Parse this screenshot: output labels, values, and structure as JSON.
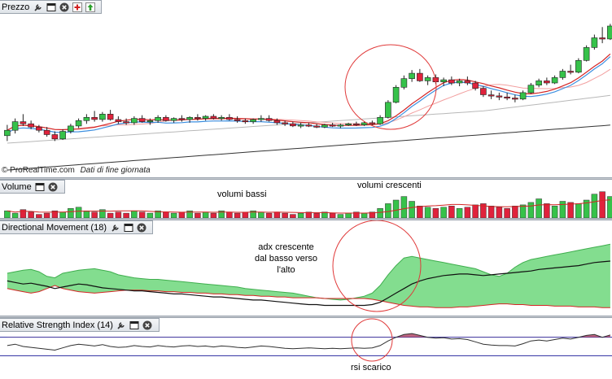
{
  "panels": {
    "price": {
      "title": "Prezzo"
    },
    "volume": {
      "title": "Volume"
    },
    "dmi": {
      "title": "Directional Movement (18)"
    },
    "rsi": {
      "title": "Relative Strength Index (14)"
    }
  },
  "footer": {
    "copyright": "© ProRealTime.com",
    "note": "Dati di fine giornata"
  },
  "annotations": {
    "low_volume": "volumi bassi",
    "rising_volume": "volumi crescenti",
    "adx_line1": "adx crescente",
    "adx_line2": "dal basso verso",
    "adx_line3": "l'alto",
    "rsi_discharged": "rsi scarico"
  },
  "colors": {
    "up_candle": "#36c24a",
    "down_candle": "#e0223c",
    "ma_red": "#d42525",
    "ma_blue": "#3d8fe0",
    "ma_pink": "#f2a0a0",
    "ma_grey": "#b8b8b8",
    "ma_dark": "#333333",
    "circle": "#e03a3a",
    "dmi_fill": "#5ad26a",
    "rsi_line": "#303030",
    "rsi_bands": "#2a2aa0"
  },
  "icons": [
    "wrench-icon",
    "window-icon",
    "close-icon",
    "add-indicator-icon",
    "raise-icon"
  ],
  "chart_data": [
    {
      "panel": "price",
      "type": "candlestick",
      "candles": [
        [
          10,
          11,
          9.5,
          10.5
        ],
        [
          10.5,
          11.6,
          10.2,
          11.3
        ],
        [
          11.3,
          12.0,
          10.9,
          11.1
        ],
        [
          11.1,
          11.4,
          10.6,
          10.8
        ],
        [
          10.8,
          11.0,
          10.3,
          10.5
        ],
        [
          10.5,
          10.8,
          9.9,
          10.1
        ],
        [
          10.1,
          10.4,
          9.5,
          9.7
        ],
        [
          9.7,
          10.6,
          9.6,
          10.4
        ],
        [
          10.4,
          11.1,
          10.2,
          10.9
        ],
        [
          10.9,
          11.6,
          10.7,
          11.4
        ],
        [
          11.4,
          12.0,
          11.1,
          11.7
        ],
        [
          11.7,
          12.3,
          11.3,
          11.5
        ],
        [
          11.5,
          12.2,
          11.3,
          12.0
        ],
        [
          12.0,
          12.4,
          11.4,
          11.5
        ],
        [
          11.5,
          11.8,
          11.1,
          11.3
        ],
        [
          11.3,
          11.6,
          11.0,
          11.2
        ],
        [
          11.2,
          11.8,
          11.0,
          11.6
        ],
        [
          11.6,
          11.9,
          11.2,
          11.3
        ],
        [
          11.3,
          11.6,
          11.0,
          11.4
        ],
        [
          11.4,
          11.9,
          11.2,
          11.7
        ],
        [
          11.7,
          11.9,
          11.3,
          11.4
        ],
        [
          11.4,
          11.7,
          11.2,
          11.6
        ],
        [
          11.6,
          11.9,
          11.3,
          11.5
        ],
        [
          11.5,
          11.8,
          11.2,
          11.7
        ],
        [
          11.7,
          12.0,
          11.4,
          11.6
        ],
        [
          11.6,
          11.9,
          11.4,
          11.8
        ],
        [
          11.8,
          12.0,
          11.5,
          11.6
        ],
        [
          11.6,
          11.9,
          11.4,
          11.7
        ],
        [
          11.7,
          12.0,
          11.4,
          11.5
        ],
        [
          11.5,
          11.8,
          11.2,
          11.4
        ],
        [
          11.4,
          11.6,
          11.1,
          11.3
        ],
        [
          11.3,
          11.6,
          11.1,
          11.5
        ],
        [
          11.5,
          11.9,
          11.3,
          11.6
        ],
        [
          11.6,
          11.9,
          11.3,
          11.4
        ],
        [
          11.4,
          11.6,
          11.0,
          11.2
        ],
        [
          11.2,
          11.4,
          10.9,
          11.1
        ],
        [
          11.1,
          11.3,
          10.8,
          10.9
        ],
        [
          10.9,
          11.2,
          10.7,
          11.0
        ],
        [
          11.0,
          11.2,
          10.8,
          10.9
        ],
        [
          10.9,
          11.1,
          10.7,
          10.8
        ],
        [
          10.8,
          11.1,
          10.7,
          11.0
        ],
        [
          11.0,
          11.2,
          10.8,
          10.9
        ],
        [
          10.9,
          11.1,
          10.7,
          11.0
        ],
        [
          11.0,
          11.2,
          10.9,
          11.1
        ],
        [
          11.1,
          11.3,
          10.9,
          11.0
        ],
        [
          11.0,
          11.3,
          10.9,
          11.2
        ],
        [
          11.2,
          11.4,
          11.0,
          11.1
        ],
        [
          11.1,
          11.9,
          11.0,
          11.7
        ],
        [
          11.7,
          13.3,
          11.6,
          13.1
        ],
        [
          13.1,
          14.7,
          13.0,
          14.5
        ],
        [
          14.5,
          15.6,
          14.3,
          15.3
        ],
        [
          15.3,
          16.1,
          15.0,
          15.8
        ],
        [
          15.8,
          16.2,
          15.0,
          15.1
        ],
        [
          15.1,
          15.6,
          14.7,
          15.4
        ],
        [
          15.4,
          15.7,
          14.8,
          15.0
        ],
        [
          15.0,
          15.4,
          14.6,
          15.2
        ],
        [
          15.2,
          15.5,
          14.7,
          14.9
        ],
        [
          14.9,
          15.3,
          14.6,
          15.1
        ],
        [
          15.1,
          15.5,
          14.7,
          14.9
        ],
        [
          14.9,
          15.1,
          14.2,
          14.4
        ],
        [
          14.4,
          14.6,
          13.6,
          13.8
        ],
        [
          13.8,
          14.2,
          13.4,
          13.7
        ],
        [
          13.7,
          14.0,
          13.3,
          13.6
        ],
        [
          13.6,
          14.0,
          13.3,
          13.5
        ],
        [
          13.5,
          13.8,
          13.1,
          13.4
        ],
        [
          13.4,
          14.2,
          13.3,
          14.0
        ],
        [
          14.0,
          14.9,
          13.9,
          14.7
        ],
        [
          14.7,
          15.3,
          14.5,
          15.1
        ],
        [
          15.1,
          15.4,
          14.7,
          14.9
        ],
        [
          14.9,
          15.6,
          14.8,
          15.4
        ],
        [
          15.4,
          16.2,
          15.2,
          16.0
        ],
        [
          16.0,
          16.6,
          15.7,
          15.9
        ],
        [
          15.9,
          17.2,
          15.8,
          17.0
        ],
        [
          17.0,
          18.4,
          16.9,
          18.2
        ],
        [
          18.2,
          19.4,
          18.0,
          19.1
        ],
        [
          19.1,
          20.1,
          18.6,
          19.0
        ],
        [
          19.0,
          20.4,
          18.9,
          20.2
        ]
      ]
    },
    {
      "panel": "volume",
      "type": "bar",
      "values": [
        6,
        4,
        7,
        5,
        3,
        4,
        6,
        5,
        8,
        9,
        6,
        5,
        7,
        4,
        5,
        4,
        6,
        5,
        4,
        6,
        5,
        4,
        5,
        6,
        4,
        5,
        4,
        6,
        5,
        4,
        5,
        6,
        5,
        4,
        5,
        4,
        3,
        4,
        5,
        4,
        5,
        4,
        3,
        4,
        5,
        4,
        5,
        8,
        12,
        15,
        18,
        14,
        10,
        9,
        8,
        9,
        10,
        8,
        9,
        11,
        12,
        10,
        9,
        8,
        10,
        11,
        13,
        16,
        12,
        10,
        14,
        13,
        12,
        15,
        20,
        22,
        18
      ],
      "ylim": [
        0,
        30
      ]
    },
    {
      "panel": "dmi",
      "type": "area",
      "adx": [
        40,
        38,
        36,
        37,
        35,
        33,
        30,
        32,
        34,
        36,
        35,
        33,
        31,
        30,
        29,
        28,
        27,
        27,
        26,
        25,
        24,
        23,
        23,
        22,
        21,
        20,
        19,
        19,
        18,
        17,
        16,
        15,
        15,
        14,
        13,
        12,
        11,
        10,
        9,
        9,
        8,
        8,
        8,
        8,
        8,
        8,
        9,
        12,
        18,
        24,
        30,
        36,
        40,
        43,
        45,
        47,
        48,
        49,
        49,
        48,
        47,
        48,
        49,
        50,
        51,
        52,
        53,
        55,
        56,
        57,
        58,
        59,
        60,
        62,
        64,
        65,
        66
      ],
      "di_plus": [
        50,
        52,
        54,
        55,
        52,
        46,
        44,
        50,
        52,
        54,
        55,
        56,
        54,
        52,
        48,
        46,
        44,
        43,
        42,
        42,
        41,
        40,
        39,
        38,
        37,
        36,
        35,
        34,
        33,
        32,
        30,
        29,
        28,
        27,
        26,
        25,
        24,
        22,
        20,
        18,
        17,
        16,
        15,
        16,
        18,
        20,
        24,
        34,
        48,
        60,
        70,
        72,
        70,
        68,
        66,
        64,
        62,
        60,
        58,
        56,
        52,
        48,
        46,
        50,
        58,
        64,
        68,
        70,
        72,
        74,
        76,
        78,
        80,
        82,
        84,
        86,
        88
      ],
      "di_minus": [
        30,
        28,
        26,
        24,
        26,
        30,
        34,
        30,
        28,
        26,
        25,
        24,
        25,
        26,
        27,
        28,
        28,
        28,
        27,
        27,
        26,
        26,
        25,
        25,
        24,
        24,
        23,
        23,
        22,
        22,
        21,
        21,
        20,
        20,
        19,
        19,
        18,
        18,
        18,
        18,
        17,
        17,
        17,
        17,
        17,
        17,
        16,
        14,
        12,
        10,
        8,
        7,
        6,
        6,
        5,
        5,
        5,
        6,
        6,
        7,
        8,
        9,
        10,
        10,
        9,
        9,
        8,
        8,
        8,
        7,
        7,
        7,
        6,
        6,
        6,
        5,
        5
      ],
      "ylim": [
        0,
        100
      ]
    },
    {
      "panel": "rsi",
      "type": "line",
      "values": [
        52,
        55,
        50,
        48,
        46,
        44,
        42,
        47,
        52,
        55,
        53,
        51,
        54,
        50,
        48,
        49,
        52,
        50,
        49,
        52,
        50,
        49,
        51,
        52,
        50,
        51,
        49,
        51,
        50,
        48,
        47,
        49,
        51,
        50,
        48,
        46,
        45,
        46,
        47,
        46,
        45,
        46,
        45,
        46,
        47,
        46,
        47,
        52,
        62,
        70,
        76,
        78,
        74,
        70,
        68,
        69,
        66,
        67,
        65,
        60,
        55,
        53,
        52,
        52,
        51,
        56,
        62,
        64,
        62,
        65,
        68,
        66,
        70,
        74,
        76,
        70,
        75
      ],
      "ylim": [
        20,
        80
      ],
      "bands": [
        30,
        70
      ]
    }
  ]
}
